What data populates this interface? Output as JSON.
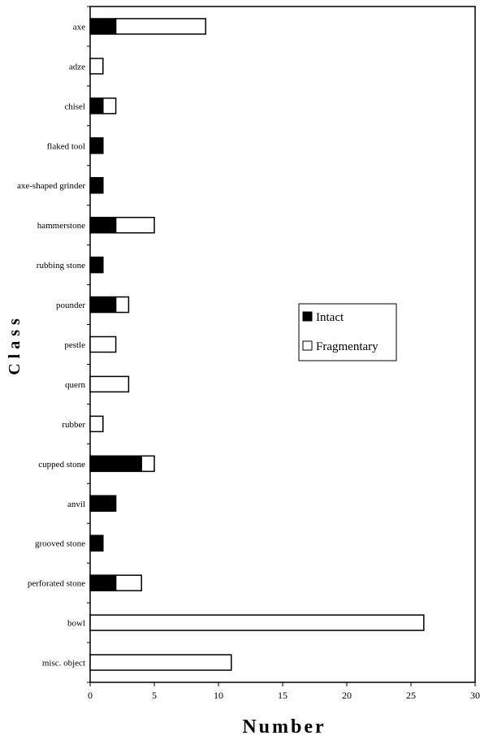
{
  "chart_data": {
    "type": "bar",
    "orientation": "horizontal",
    "stacked": true,
    "categories": [
      "axe",
      "adze",
      "chisel",
      "flaked tool",
      "axe-shaped grinder",
      "hammerstone",
      "rubbing stone",
      "pounder",
      "pestle",
      "quern",
      "rubber",
      "cupped stone",
      "anvil",
      "grooved stone",
      "perforated stone",
      "bowl",
      "misc. object"
    ],
    "series": [
      {
        "name": "Intact",
        "color": "#000000",
        "values": [
          2,
          0,
          1,
          1,
          1,
          2,
          1,
          2,
          0,
          0,
          0,
          4,
          2,
          1,
          2,
          0,
          0
        ]
      },
      {
        "name": "Fragmentary",
        "color": "#ffffff",
        "values": [
          7,
          1,
          1,
          0,
          0,
          3,
          0,
          1,
          2,
          3,
          1,
          1,
          0,
          0,
          2,
          26,
          11
        ]
      }
    ],
    "xlabel": "Number",
    "ylabel": "Class",
    "xlim": [
      0,
      30
    ],
    "xticks": [
      0,
      5,
      10,
      15,
      20,
      25,
      30
    ],
    "grid": false,
    "legend": "right-center"
  }
}
